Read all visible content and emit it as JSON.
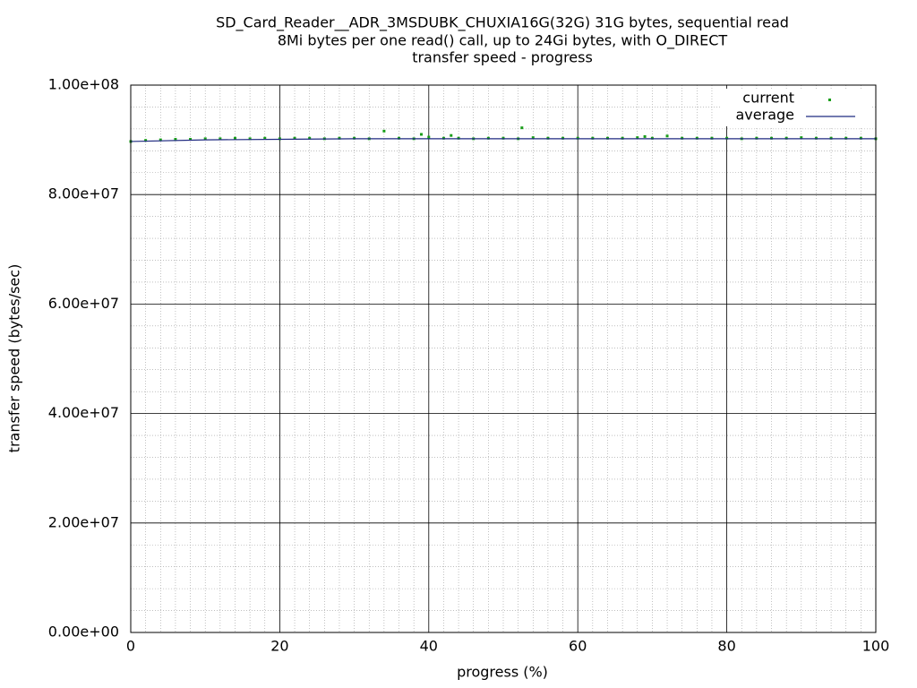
{
  "chart_data": {
    "type": "scatter",
    "title": [
      "SD_Card_Reader__ADR_3MSDUBK_CHUXIA16G(32G) 31G bytes, sequential read",
      "8Mi bytes per one read() call, up to 24Gi bytes, with O_DIRECT",
      "transfer speed - progress"
    ],
    "x_label": "progress (%)",
    "y_label": "transfer speed (bytes/sec)",
    "xlim": [
      0,
      100
    ],
    "xticks": [
      0,
      20,
      40,
      60,
      80,
      100
    ],
    "ylim": [
      0,
      100000000
    ],
    "yticks": [
      {
        "value": 0,
        "label": "0.00e+00"
      },
      {
        "value": 20000000,
        "label": "2.00e+07"
      },
      {
        "value": 40000000,
        "label": "4.00e+07"
      },
      {
        "value": 60000000,
        "label": "6.00e+07"
      },
      {
        "value": 80000000,
        "label": "8.00e+07"
      },
      {
        "value": 100000000,
        "label": "1.00e+08"
      }
    ],
    "grid": true,
    "minor_grid": {
      "x": 10,
      "y": 5
    },
    "legend": "top-right",
    "series": [
      {
        "name": "current",
        "color": "#1a9e1a",
        "style": "points",
        "x": [
          0,
          2,
          4,
          6,
          8,
          10,
          12,
          14,
          16,
          18,
          20,
          22,
          24,
          26,
          28,
          30,
          32,
          34,
          36,
          38,
          39,
          40,
          42,
          43,
          44,
          46,
          48,
          50,
          52,
          52.5,
          54,
          56,
          58,
          60,
          62,
          64,
          66,
          68,
          69,
          70,
          72,
          74,
          76,
          78,
          80,
          82,
          84,
          86,
          88,
          90,
          92,
          94,
          96,
          98,
          100
        ],
        "values": [
          89700000,
          89900000,
          90000000,
          90100000,
          90100000,
          90200000,
          90200000,
          90300000,
          90200000,
          90300000,
          90200000,
          90300000,
          90300000,
          90200000,
          90300000,
          90300000,
          90200000,
          91600000,
          90300000,
          90200000,
          91000000,
          90500000,
          90300000,
          90800000,
          90300000,
          90200000,
          90300000,
          90300000,
          90200000,
          92200000,
          90400000,
          90300000,
          90300000,
          90300000,
          90300000,
          90300000,
          90300000,
          90400000,
          90600000,
          90300000,
          90700000,
          90300000,
          90300000,
          90300000,
          90300000,
          90200000,
          90300000,
          90300000,
          90300000,
          90400000,
          90300000,
          90300000,
          90300000,
          90300000,
          90200000
        ]
      },
      {
        "name": "average",
        "color": "#1f2a80",
        "style": "line",
        "x": [
          0,
          10,
          20,
          30,
          40,
          50,
          60,
          70,
          80,
          90,
          100
        ],
        "values": [
          89700000,
          90000000,
          90100000,
          90200000,
          90200000,
          90200000,
          90200000,
          90200000,
          90200000,
          90200000,
          90200000
        ]
      }
    ]
  }
}
